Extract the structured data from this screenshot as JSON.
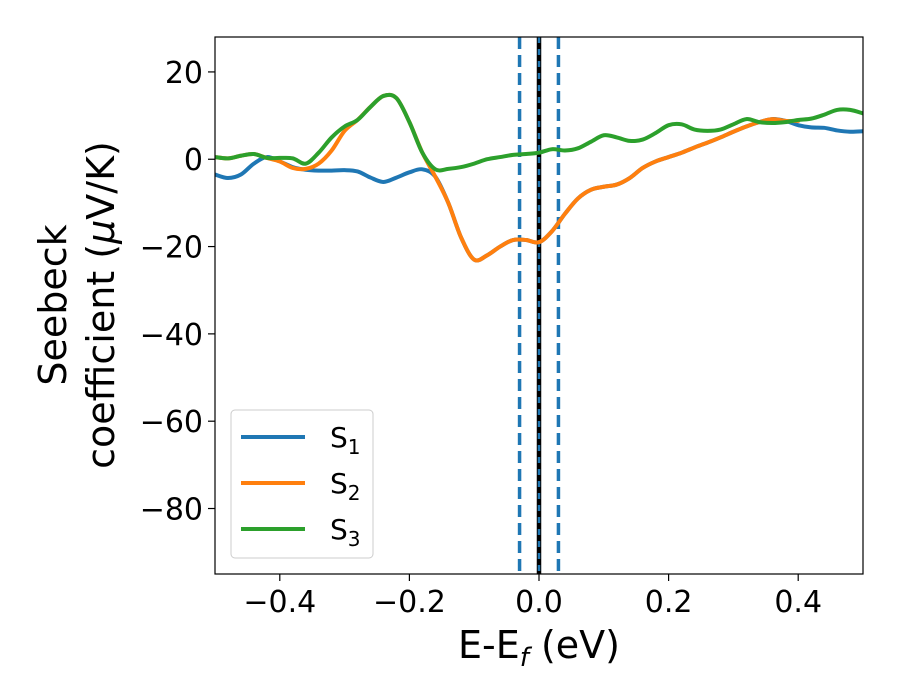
{
  "chart_data": {
    "type": "line",
    "xlabel": "E-E",
    "xlabel_sub": "f",
    "xlabel_unit": " (eV)",
    "ylabel_line1": "Seebeck",
    "ylabel_line2": "coefficient  (",
    "ylabel_mu": "μ",
    "ylabel_unit": "V/K)",
    "xlim": [
      -0.5,
      0.5
    ],
    "ylim": [
      -95,
      28
    ],
    "xticks": [
      -0.4,
      -0.2,
      0.0,
      0.2,
      0.4
    ],
    "xtick_labels": [
      "−0.4",
      "−0.2",
      "0.0",
      "0.2",
      "0.4"
    ],
    "yticks": [
      20,
      0,
      -20,
      -40,
      -60,
      -80
    ],
    "ytick_labels": [
      "20",
      "0",
      "−20",
      "−40",
      "−60",
      "−80"
    ],
    "legend_position": "lower-left",
    "grid": false,
    "vertical_lines": [
      {
        "x": -0.03,
        "style": "dashed",
        "color": "#1f77b4"
      },
      {
        "x": 0.0,
        "style": "solid",
        "color": "#000000"
      },
      {
        "x": 0.0,
        "style": "solid",
        "color": "#1f77b4"
      },
      {
        "x": 0.03,
        "style": "dashed",
        "color": "#1f77b4"
      }
    ],
    "series": [
      {
        "name": "S",
        "sub": "1",
        "color": "#1f77b4",
        "x": [
          -0.5,
          -0.48,
          -0.46,
          -0.44,
          -0.42,
          -0.4,
          -0.38,
          -0.36,
          -0.34,
          -0.32,
          -0.3,
          -0.28,
          -0.26,
          -0.24,
          -0.22,
          -0.2,
          -0.18,
          -0.16,
          -0.14,
          -0.12,
          -0.1,
          -0.08,
          -0.06,
          -0.04,
          -0.02,
          0.0,
          0.02,
          0.04,
          0.06,
          0.08,
          0.1,
          0.12,
          0.14,
          0.16,
          0.18,
          0.2,
          0.22,
          0.24,
          0.26,
          0.28,
          0.3,
          0.32,
          0.34,
          0.36,
          0.38,
          0.4,
          0.42,
          0.44,
          0.46,
          0.48,
          0.5
        ],
        "y": [
          -3.5,
          -4.3,
          -3.5,
          -1.0,
          0.5,
          -0.5,
          -1.8,
          -2.4,
          -2.6,
          -2.6,
          -2.5,
          -2.8,
          -4.2,
          -5.2,
          -4.2,
          -3.0,
          -2.3,
          -4.0,
          -10.0,
          -18.0,
          -23.0,
          -22.0,
          -20.0,
          -18.5,
          -18.5,
          -19.0,
          -16.5,
          -12.5,
          -9.0,
          -7.0,
          -6.3,
          -5.8,
          -4.3,
          -2.0,
          -0.5,
          0.5,
          1.5,
          2.7,
          3.8,
          5.0,
          6.3,
          7.5,
          8.5,
          9.2,
          8.8,
          7.8,
          7.3,
          7.2,
          6.6,
          6.3,
          6.4
        ]
      },
      {
        "name": "S",
        "sub": "2",
        "color": "#ff7f0e",
        "x": [
          -0.5,
          -0.48,
          -0.46,
          -0.44,
          -0.42,
          -0.4,
          -0.38,
          -0.36,
          -0.34,
          -0.32,
          -0.3,
          -0.28,
          -0.26,
          -0.24,
          -0.22,
          -0.2,
          -0.18,
          -0.16,
          -0.14,
          -0.12,
          -0.1,
          -0.08,
          -0.06,
          -0.04,
          -0.02,
          0.0,
          0.02,
          0.04,
          0.06,
          0.08,
          0.1,
          0.12,
          0.14,
          0.16,
          0.18,
          0.2,
          0.22,
          0.24,
          0.26,
          0.28,
          0.3,
          0.32,
          0.34,
          0.36,
          0.38,
          0.4
        ],
        "y": [
          0.5,
          0.2,
          0.8,
          1.2,
          0.3,
          -0.5,
          -2.0,
          -2.2,
          -1.0,
          2.0,
          6.5,
          9.0,
          12.0,
          14.5,
          14.0,
          8.5,
          1.5,
          -4.0,
          -10.0,
          -18.0,
          -23.0,
          -22.0,
          -20.0,
          -18.5,
          -18.5,
          -19.0,
          -16.5,
          -12.5,
          -9.0,
          -7.0,
          -6.3,
          -5.8,
          -4.3,
          -2.0,
          -0.5,
          0.5,
          1.5,
          2.7,
          3.8,
          5.0,
          6.3,
          7.5,
          8.5,
          9.2,
          8.8,
          8.8
        ]
      },
      {
        "name": "S",
        "sub": "3",
        "color": "#2ca02c",
        "x": [
          -0.5,
          -0.48,
          -0.46,
          -0.44,
          -0.42,
          -0.4,
          -0.38,
          -0.36,
          -0.34,
          -0.32,
          -0.3,
          -0.28,
          -0.26,
          -0.24,
          -0.22,
          -0.2,
          -0.18,
          -0.16,
          -0.14,
          -0.12,
          -0.1,
          -0.08,
          -0.06,
          -0.04,
          -0.02,
          0.0,
          0.02,
          0.04,
          0.06,
          0.08,
          0.1,
          0.12,
          0.14,
          0.16,
          0.18,
          0.2,
          0.22,
          0.24,
          0.26,
          0.28,
          0.3,
          0.32,
          0.34,
          0.36,
          0.38,
          0.4,
          0.42,
          0.44,
          0.46,
          0.48,
          0.5
        ],
        "y": [
          0.5,
          0.2,
          0.8,
          1.2,
          0.3,
          0.3,
          0.2,
          -1.0,
          1.5,
          5.0,
          7.5,
          9.0,
          12.0,
          14.5,
          14.0,
          8.5,
          1.5,
          -2.3,
          -2.2,
          -1.8,
          -1.0,
          0.0,
          0.5,
          1.0,
          1.2,
          1.5,
          2.3,
          2.0,
          2.5,
          4.0,
          5.5,
          5.0,
          4.2,
          4.5,
          6.0,
          7.8,
          8.0,
          6.8,
          6.5,
          6.8,
          8.0,
          9.2,
          8.5,
          8.3,
          8.5,
          9.0,
          9.3,
          10.2,
          11.3,
          11.3,
          10.5
        ]
      }
    ]
  }
}
